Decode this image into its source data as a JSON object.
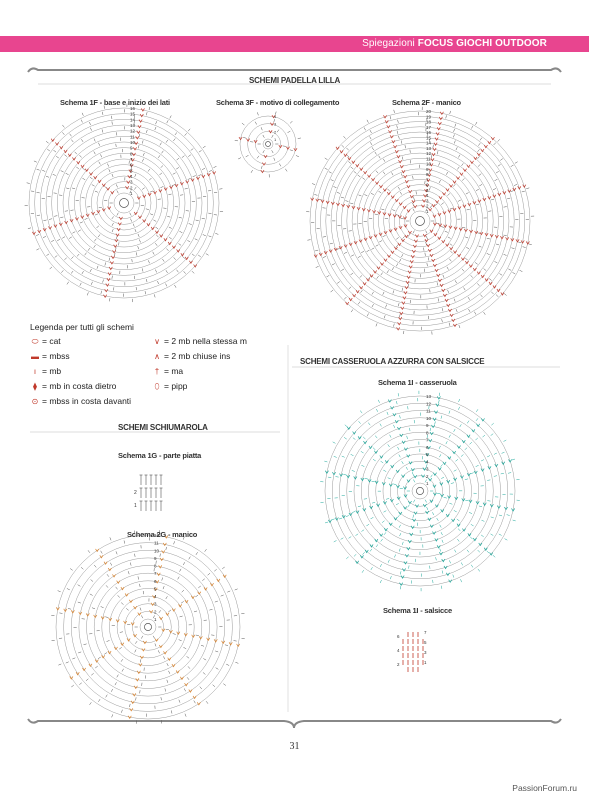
{
  "header": {
    "section": "Spiegazioni",
    "title": "FOCUS GIOCHI OUTDOOR",
    "accent_color": "#e8458f"
  },
  "sections": {
    "padella": "SCHEMI PADELLA LILLA",
    "casseruola": "SCHEMI CASSERUOLA AZZURRA CON SALSICCE",
    "schiumarola": "SCHEMI SCHIUMAROLA"
  },
  "schemes": {
    "s1f": "Schema 1F - base e inizio dei lati",
    "s3f": "Schema 3F - motivo di collegamento",
    "s2f": "Schema 2F - manico",
    "s1i_cass": "Schema 1I - casseruola",
    "s1g": "Schema 1G - parte piatta",
    "s2g": "Schema 2G - manico",
    "s1i_sals": "Schema 1I - salsicce"
  },
  "legend": {
    "title": "Legenda per tutti gli schemi",
    "items": [
      {
        "symbol": "oval",
        "label": "= cat"
      },
      {
        "symbol": "dash",
        "label": "= mbss"
      },
      {
        "symbol": "bar",
        "label": "= mb"
      },
      {
        "symbol": "post-front",
        "label": "= mb in costa dietro"
      },
      {
        "symbol": "dot-ring",
        "label": "= mbss in costa davanti"
      },
      {
        "symbol": "v",
        "label": "= 2 mb nella stessa m"
      },
      {
        "symbol": "inverted-v",
        "label": "= 2 mb chiuse ins"
      },
      {
        "symbol": "tall-bar",
        "label": "= ma"
      },
      {
        "symbol": "drop",
        "label": "= pipp"
      }
    ]
  },
  "row_numbers": {
    "s1f": [
      "16",
      "15",
      "14",
      "13",
      "12",
      "11",
      "10",
      "9",
      "8",
      "7",
      "6",
      "5",
      "4",
      "3",
      "2",
      "1"
    ],
    "s3f": [
      "4",
      "3",
      "2",
      "1"
    ],
    "s2f": [
      "20",
      "19",
      "18",
      "17",
      "16",
      "15",
      "14",
      "13",
      "12",
      "11",
      "10",
      "9",
      "8",
      "7",
      "6",
      "5",
      "4",
      "3",
      "2",
      "1"
    ],
    "s1i": [
      "13",
      "12",
      "11",
      "10",
      "9",
      "8",
      "7",
      "6",
      "5",
      "4",
      "3",
      "2",
      "1"
    ],
    "s2g": [
      "12",
      "11",
      "10",
      "9",
      "8",
      "7",
      "6",
      "5",
      "4",
      "3",
      "2",
      "1"
    ],
    "s1g": [
      "2",
      "1"
    ],
    "salsicce_left": [
      "6",
      "4",
      "2"
    ],
    "salsicce_right": [
      "7",
      "5",
      "3",
      "1"
    ]
  },
  "colors": {
    "padella_symbols": "#c0392b",
    "casseruola_symbols": "#1aa79a",
    "schiumarola_symbols": "#d9822b",
    "rings": "#9a9a9a"
  },
  "page_number": "31",
  "watermark": "PassionForum.ru"
}
